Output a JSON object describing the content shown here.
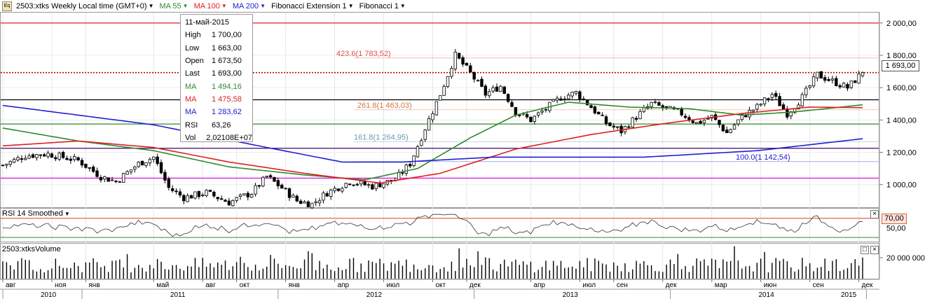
{
  "toolbar": {
    "symbol": "2503:xtks Weekly Local time (GMT+0)",
    "ma55": "MA 55",
    "ma100": "MA 100",
    "ma200": "MA 200",
    "fib_ext": "Fibonacci Extension 1",
    "fib": "Fibonacci 1",
    "icon_text": "Eq"
  },
  "colors": {
    "ma55": "#2e8b2e",
    "ma100": "#e02020",
    "ma200": "#2020d0",
    "up": "#000000",
    "fib_ext": "#e05050",
    "fib_mid": "#6a9ab0"
  },
  "infobox": {
    "date": "11-май-2015",
    "rows": [
      {
        "k": "High",
        "v": "1 700,00",
        "color": "#000000"
      },
      {
        "k": "Low",
        "v": "1 663,00",
        "color": "#000000"
      },
      {
        "k": "Open",
        "v": "1 673,50",
        "color": "#000000"
      },
      {
        "k": "Last",
        "v": "1 693,00",
        "color": "#000000"
      },
      {
        "k": "MA",
        "v": "1 494,16",
        "color": "#2e8b2e"
      },
      {
        "k": "MA",
        "v": "1 475,58",
        "color": "#e02020"
      },
      {
        "k": "MA",
        "v": "1 283,62",
        "color": "#2020d0"
      },
      {
        "k": "RSI",
        "v": "63,26",
        "color": "#000000"
      },
      {
        "k": "Vol",
        "v": "2,02108E+07",
        "color": "#000000"
      }
    ]
  },
  "last_price_label": "1 693,00",
  "rsi": {
    "title": "RSI 14 Smoothed",
    "level_label": "70,00",
    "tick_label": "50,00"
  },
  "volume": {
    "title": "2503:xtksVolume",
    "tick_label": "20 000 000"
  },
  "chart_data": {
    "type": "candlestick",
    "title": "2503:xtks Weekly",
    "y_ticks": [
      "2 000,00",
      "1 800,00",
      "1 600,00",
      "1 400,00",
      "1 200,00",
      "1 000,00"
    ],
    "y_tick_values": [
      2000,
      1800,
      1600,
      1400,
      1200,
      1000
    ],
    "ylim": [
      860,
      2060
    ],
    "price_path": [
      [
        0,
        1120
      ],
      [
        6,
        1180
      ],
      [
        12,
        1190
      ],
      [
        20,
        1150
      ],
      [
        26,
        1050
      ],
      [
        30,
        1020
      ],
      [
        36,
        1130
      ],
      [
        40,
        1170
      ],
      [
        44,
        980
      ],
      [
        48,
        920
      ],
      [
        54,
        950
      ],
      [
        60,
        890
      ],
      [
        66,
        950
      ],
      [
        70,
        1050
      ],
      [
        74,
        980
      ],
      [
        78,
        900
      ],
      [
        82,
        880
      ],
      [
        86,
        950
      ],
      [
        92,
        1020
      ],
      [
        98,
        990
      ],
      [
        104,
        1030
      ],
      [
        108,
        1130
      ],
      [
        112,
        1350
      ],
      [
        116,
        1560
      ],
      [
        120,
        1800
      ],
      [
        124,
        1690
      ],
      [
        128,
        1560
      ],
      [
        132,
        1610
      ],
      [
        136,
        1450
      ],
      [
        140,
        1400
      ],
      [
        144,
        1470
      ],
      [
        148,
        1540
      ],
      [
        152,
        1570
      ],
      [
        156,
        1480
      ],
      [
        160,
        1380
      ],
      [
        164,
        1330
      ],
      [
        168,
        1420
      ],
      [
        172,
        1500
      ],
      [
        176,
        1470
      ],
      [
        180,
        1440
      ],
      [
        184,
        1380
      ],
      [
        188,
        1420
      ],
      [
        192,
        1320
      ],
      [
        196,
        1420
      ],
      [
        200,
        1480
      ],
      [
        204,
        1560
      ],
      [
        208,
        1440
      ],
      [
        212,
        1540
      ],
      [
        216,
        1680
      ],
      [
        220,
        1640
      ],
      [
        224,
        1600
      ],
      [
        228,
        1693
      ]
    ],
    "candle_count": 229,
    "ma55": [
      [
        0,
        1350
      ],
      [
        20,
        1270
      ],
      [
        40,
        1210
      ],
      [
        60,
        1110
      ],
      [
        80,
        1060
      ],
      [
        96,
        1030
      ],
      [
        110,
        1100
      ],
      [
        124,
        1290
      ],
      [
        136,
        1430
      ],
      [
        150,
        1510
      ],
      [
        166,
        1480
      ],
      [
        182,
        1470
      ],
      [
        196,
        1430
      ],
      [
        210,
        1450
      ],
      [
        228,
        1494
      ]
    ],
    "ma100": [
      [
        0,
        1240
      ],
      [
        20,
        1270
      ],
      [
        40,
        1230
      ],
      [
        60,
        1140
      ],
      [
        80,
        1070
      ],
      [
        100,
        1010
      ],
      [
        116,
        1070
      ],
      [
        136,
        1220
      ],
      [
        156,
        1310
      ],
      [
        176,
        1380
      ],
      [
        196,
        1440
      ],
      [
        214,
        1480
      ],
      [
        228,
        1476
      ]
    ],
    "ma200": [
      [
        0,
        1490
      ],
      [
        40,
        1370
      ],
      [
        70,
        1230
      ],
      [
        90,
        1140
      ],
      [
        106,
        1140
      ],
      [
        130,
        1170
      ],
      [
        170,
        1170
      ],
      [
        200,
        1210
      ],
      [
        228,
        1284
      ]
    ],
    "horizontal_levels": [
      {
        "price": 2000,
        "color": "#e02020",
        "style": "solid"
      },
      {
        "price": 1693,
        "color": "#c00000",
        "style": "dotted"
      },
      {
        "price": 1525,
        "color": "#000000",
        "style": "solid"
      },
      {
        "price": 1375,
        "color": "#2e8b2e",
        "style": "solid"
      },
      {
        "price": 1225,
        "color": "#3d0a6b",
        "style": "solid"
      },
      {
        "price": 1040,
        "color": "#e020e0",
        "style": "solid"
      }
    ],
    "fibonacci_labels": [
      {
        "text": "423.6(1 783,52)",
        "price": 1783.52,
        "color": "#e05050"
      },
      {
        "text": "261.8(1 463,03)",
        "price": 1463.03,
        "color": "#d07840"
      },
      {
        "text": "161.8(1 264,95)",
        "price": 1264.95,
        "color": "#6a9ab0"
      },
      {
        "text": "100.0(1 142,54)",
        "price": 1142.54,
        "color": "#2020d0"
      }
    ],
    "rsi_level": 70,
    "rsi_last": 63.26,
    "volume_last": 20210800,
    "x_months": [
      {
        "label": "авг",
        "i": 0
      },
      {
        "label": "ноя",
        "i": 13
      },
      {
        "label": "янв",
        "i": 22
      },
      {
        "label": "май",
        "i": 40
      },
      {
        "label": "авг",
        "i": 53
      },
      {
        "label": "окт",
        "i": 62
      },
      {
        "label": "янв",
        "i": 75
      },
      {
        "label": "апр",
        "i": 88
      },
      {
        "label": "июл",
        "i": 101
      },
      {
        "label": "окт",
        "i": 114
      },
      {
        "label": "дек",
        "i": 123
      },
      {
        "label": "апр",
        "i": 140
      },
      {
        "label": "июл",
        "i": 153
      },
      {
        "label": "сен",
        "i": 162
      },
      {
        "label": "дек",
        "i": 175
      },
      {
        "label": "мар",
        "i": 188
      },
      {
        "label": "июн",
        "i": 201
      },
      {
        "label": "сен",
        "i": 214
      },
      {
        "label": "дек",
        "i": 227
      }
    ],
    "x_years": [
      {
        "label": "2010",
        "i": 0
      },
      {
        "label": "2011",
        "i": 21
      },
      {
        "label": "2012",
        "i": 73
      },
      {
        "label": "2013",
        "i": 125
      },
      {
        "label": "2014",
        "i": 177
      },
      {
        "label": "2015",
        "i": 229
      }
    ]
  }
}
